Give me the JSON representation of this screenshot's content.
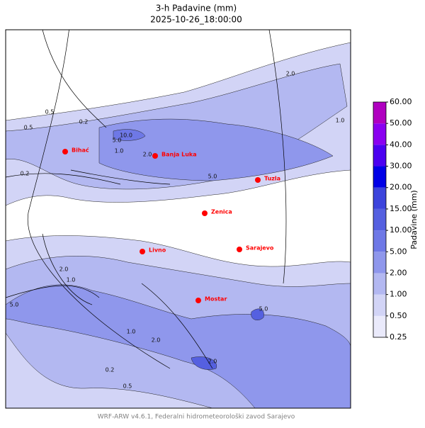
{
  "header": {
    "title": "3-h Padavine (mm)",
    "subtitle": "2025-10-26_18:00:00"
  },
  "map": {
    "cities": [
      "Bihać",
      "Banja Luka",
      "Tuzla",
      "Zenica",
      "Livno",
      "Sarajevo",
      "Mostar"
    ],
    "contour_labels": [
      "10.0",
      "5.0",
      "2.0",
      "1.0",
      "0.5",
      "0.2",
      "5.0",
      "2.0",
      "1.0",
      "0.5",
      "0.2",
      "5.0",
      "2.0",
      "1.0",
      "0.5",
      "0.2",
      "2.0",
      "5.0",
      "2.0",
      "1.0"
    ]
  },
  "colorbar": {
    "label": "Padavine (mm)",
    "ticks": [
      {
        "value": 0.25,
        "label": "0.25"
      },
      {
        "value": 0.5,
        "label": "0.50"
      },
      {
        "value": 1,
        "label": "1.00"
      },
      {
        "value": 2,
        "label": "2.00"
      },
      {
        "value": 5,
        "label": "5.00"
      },
      {
        "value": 10,
        "label": "10.00"
      },
      {
        "value": 15,
        "label": "15.00"
      },
      {
        "value": 20,
        "label": "20.00"
      },
      {
        "value": 30,
        "label": "30.00"
      },
      {
        "value": 40,
        "label": "40.00"
      },
      {
        "value": 50,
        "label": "50.00"
      },
      {
        "value": 60,
        "label": "60.00"
      }
    ],
    "colors": [
      "#eaeafb",
      "#d2d4f6",
      "#b3b8f1",
      "#8f97ec",
      "#6e78e6",
      "#5560e0",
      "#3c44dc",
      "#0000e6",
      "#4b00f0",
      "#8a00f0",
      "#b000c0"
    ]
  },
  "footer": "WRF-ARW v4.6.1, Federalni hidrometeorološki zavod Sarajevo"
}
